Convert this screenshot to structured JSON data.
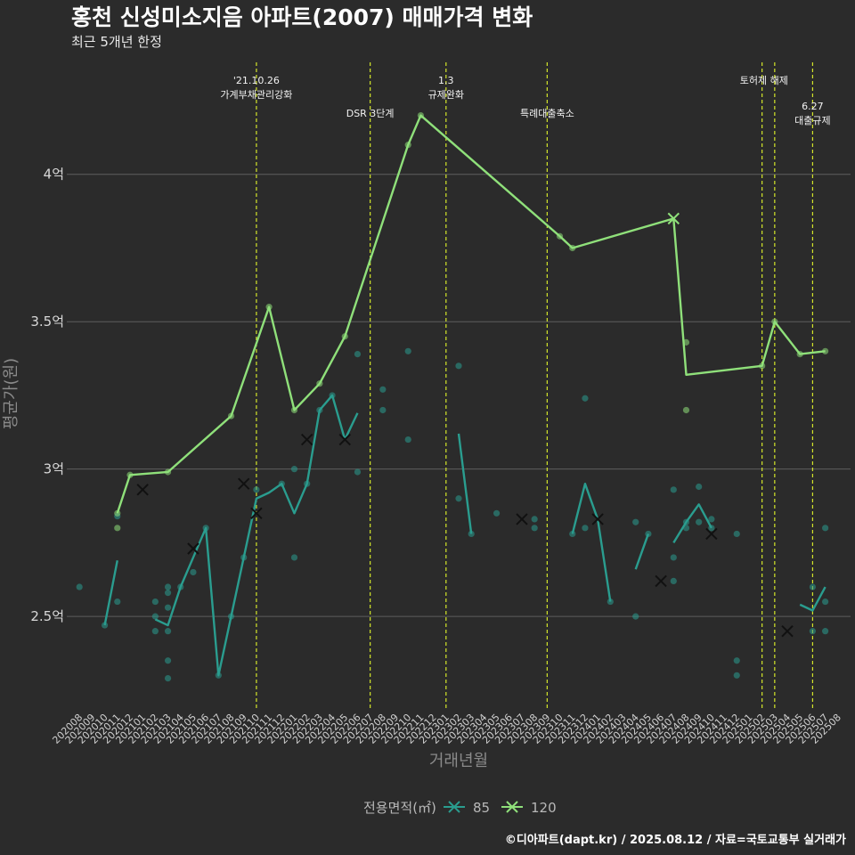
{
  "chart_data": {
    "type": "line",
    "title": "홍천 신성미소지음 아파트(2007) 매매가격 변화",
    "subtitle": "최근 5개년 한정",
    "xlabel": "거래년월",
    "ylabel": "평균가(원)",
    "caption": "©디아파트(dapt.kr) / 2025.08.12 / 자료=국토교통부 실거래가",
    "legend_title": "전용면적(㎡)",
    "legend_position": "bottom",
    "grid": true,
    "ylim": [
      2.18,
      4.38
    ],
    "y_ticks": [
      {
        "value": 2.5,
        "label": "2.5억"
      },
      {
        "value": 3,
        "label": "3억"
      },
      {
        "value": 3.5,
        "label": "3.5억"
      },
      {
        "value": 4,
        "label": "4억"
      }
    ],
    "categories": [
      "202008",
      "202009",
      "202010",
      "202011",
      "202012",
      "202101",
      "202102",
      "202103",
      "202104",
      "202105",
      "202106",
      "202107",
      "202108",
      "202109",
      "202110",
      "202111",
      "202112",
      "202201",
      "202202",
      "202203",
      "202204",
      "202205",
      "202206",
      "202207",
      "202208",
      "202209",
      "202210",
      "202211",
      "202212",
      "202301",
      "202302",
      "202303",
      "202304",
      "202305",
      "202306",
      "202307",
      "202308",
      "202309",
      "202310",
      "202311",
      "202312",
      "202401",
      "202402",
      "202403",
      "202404",
      "202405",
      "202406",
      "202407",
      "202408",
      "202409",
      "202410",
      "202411",
      "202412",
      "202501",
      "202502",
      "202503",
      "202504",
      "202505",
      "202506",
      "202507",
      "202508"
    ],
    "series": [
      {
        "name": "85",
        "color": "#2a9d8f",
        "marker": "x",
        "line_segments": [
          [
            [
              "202010",
              2.47
            ],
            [
              "202011",
              2.69
            ]
          ],
          [
            [
              "202102",
              2.49
            ],
            [
              "202103",
              2.47
            ],
            [
              "202104",
              2.6
            ],
            [
              "202105",
              2.7
            ],
            [
              "202106",
              2.8
            ],
            [
              "202107",
              2.3
            ],
            [
              "202108",
              2.5
            ],
            [
              "202109",
              2.7
            ],
            [
              "202110",
              2.9
            ],
            [
              "202111",
              2.92
            ],
            [
              "202112",
              2.95
            ],
            [
              "202201",
              2.85
            ],
            [
              "202202",
              2.95
            ],
            [
              "202203",
              3.2
            ],
            [
              "202204",
              3.25
            ],
            [
              "202205",
              3.1
            ],
            [
              "202206",
              3.19
            ]
          ],
          [
            [
              "202302",
              3.12
            ],
            [
              "202303",
              2.78
            ]
          ],
          [
            [
              "202311",
              2.78
            ],
            [
              "202312",
              2.95
            ],
            [
              "202401",
              2.83
            ],
            [
              "202402",
              2.55
            ]
          ],
          [
            [
              "202404",
              2.66
            ],
            [
              "202405",
              2.78
            ]
          ],
          [
            [
              "202407",
              2.75
            ],
            [
              "202408",
              2.82
            ],
            [
              "202409",
              2.88
            ],
            [
              "202410",
              2.8
            ]
          ],
          [
            [
              "202505",
              2.54
            ],
            [
              "202506",
              2.52
            ],
            [
              "202507",
              2.6
            ]
          ]
        ],
        "points": [
          [
            "202008",
            2.6
          ],
          [
            "202010",
            2.47
          ],
          [
            "202011",
            2.55
          ],
          [
            "202011",
            2.84
          ],
          [
            "202102",
            2.55
          ],
          [
            "202102",
            2.5
          ],
          [
            "202102",
            2.45
          ],
          [
            "202103",
            2.6
          ],
          [
            "202103",
            2.58
          ],
          [
            "202103",
            2.53
          ],
          [
            "202103",
            2.45
          ],
          [
            "202103",
            2.35
          ],
          [
            "202103",
            2.29
          ],
          [
            "202104",
            2.6
          ],
          [
            "202105",
            2.65
          ],
          [
            "202106",
            2.8
          ],
          [
            "202107",
            2.3
          ],
          [
            "202108",
            2.5
          ],
          [
            "202109",
            2.7
          ],
          [
            "202110",
            2.93
          ],
          [
            "202112",
            2.95
          ],
          [
            "202201",
            3.0
          ],
          [
            "202201",
            2.7
          ],
          [
            "202202",
            2.95
          ],
          [
            "202203",
            3.2
          ],
          [
            "202204",
            3.25
          ],
          [
            "202206",
            3.39
          ],
          [
            "202206",
            2.99
          ],
          [
            "202208",
            3.27
          ],
          [
            "202208",
            3.2
          ],
          [
            "202210",
            3.4
          ],
          [
            "202210",
            3.1
          ],
          [
            "202302",
            3.35
          ],
          [
            "202302",
            2.9
          ],
          [
            "202303",
            2.78
          ],
          [
            "202305",
            2.85
          ],
          [
            "202308",
            2.8
          ],
          [
            "202308",
            2.83
          ],
          [
            "202311",
            2.78
          ],
          [
            "202312",
            2.8
          ],
          [
            "202312",
            3.24
          ],
          [
            "202402",
            2.55
          ],
          [
            "202404",
            2.5
          ],
          [
            "202404",
            2.82
          ],
          [
            "202405",
            2.78
          ],
          [
            "202407",
            2.93
          ],
          [
            "202407",
            2.7
          ],
          [
            "202407",
            2.62
          ],
          [
            "202408",
            2.82
          ],
          [
            "202408",
            2.8
          ],
          [
            "202409",
            2.94
          ],
          [
            "202409",
            2.82
          ],
          [
            "202410",
            2.83
          ],
          [
            "202410",
            2.8
          ],
          [
            "202412",
            2.78
          ],
          [
            "202412",
            2.35
          ],
          [
            "202412",
            2.3
          ],
          [
            "202506",
            2.6
          ],
          [
            "202506",
            2.45
          ],
          [
            "202507",
            2.55
          ],
          [
            "202507",
            2.45
          ],
          [
            "202507",
            2.8
          ]
        ],
        "cross_points": [
          [
            "202101",
            2.93
          ],
          [
            "202105",
            2.73
          ],
          [
            "202109",
            2.95
          ],
          [
            "202110",
            2.85
          ],
          [
            "202202",
            3.1
          ],
          [
            "202205",
            3.1
          ],
          [
            "202307",
            2.83
          ],
          [
            "202401",
            2.83
          ],
          [
            "202406",
            2.62
          ],
          [
            "202410",
            2.78
          ],
          [
            "202504",
            2.45
          ]
        ]
      },
      {
        "name": "120",
        "color": "#8fe07a",
        "marker": "x",
        "line_segments": [
          [
            [
              "202011",
              2.85
            ],
            [
              "202012",
              2.98
            ],
            [
              "202103",
              2.99
            ],
            [
              "202108",
              3.18
            ],
            [
              "202111",
              3.55
            ],
            [
              "202201",
              3.2
            ],
            [
              "202203",
              3.29
            ],
            [
              "202205",
              3.45
            ],
            [
              "202210",
              4.1
            ],
            [
              "202211",
              4.2
            ],
            [
              "202310",
              3.79
            ],
            [
              "202311",
              3.75
            ],
            [
              "202407",
              3.85
            ],
            [
              "202408",
              3.32
            ],
            [
              "202502",
              3.35
            ],
            [
              "202503",
              3.5
            ],
            [
              "202505",
              3.39
            ],
            [
              "202507",
              3.4
            ]
          ]
        ],
        "points": [
          [
            "202011",
            2.85
          ],
          [
            "202011",
            2.8
          ],
          [
            "202012",
            2.98
          ],
          [
            "202103",
            2.99
          ],
          [
            "202108",
            3.18
          ],
          [
            "202111",
            3.55
          ],
          [
            "202201",
            3.2
          ],
          [
            "202203",
            3.29
          ],
          [
            "202205",
            3.45
          ],
          [
            "202210",
            4.1
          ],
          [
            "202211",
            4.2
          ],
          [
            "202310",
            3.79
          ],
          [
            "202311",
            3.75
          ],
          [
            "202408",
            3.43
          ],
          [
            "202408",
            3.2
          ],
          [
            "202502",
            3.35
          ],
          [
            "202503",
            3.5
          ],
          [
            "202505",
            3.39
          ],
          [
            "202507",
            3.4
          ]
        ],
        "cross_points": [
          [
            "202407",
            3.85
          ]
        ]
      }
    ],
    "annotations": [
      {
        "x": "202110",
        "lines": [
          "'21.10.26",
          "가계부채관리강화"
        ],
        "row": 0
      },
      {
        "x": "202207",
        "lines": [
          "DSR 3단계"
        ],
        "row": 1
      },
      {
        "x": "202301",
        "lines": [
          "1.3",
          "규제완화"
        ],
        "row": 0
      },
      {
        "x": "202309",
        "lines": [
          "특례대출축소"
        ],
        "row": 1
      },
      {
        "x": "202502",
        "lines": [],
        "row": 0
      },
      {
        "x": "202503",
        "lines": [
          "토허제 해제"
        ],
        "row": 0,
        "dx": -12
      },
      {
        "x": "202506",
        "lines": [
          "6.27",
          "대출규제"
        ],
        "row": 2
      }
    ]
  }
}
